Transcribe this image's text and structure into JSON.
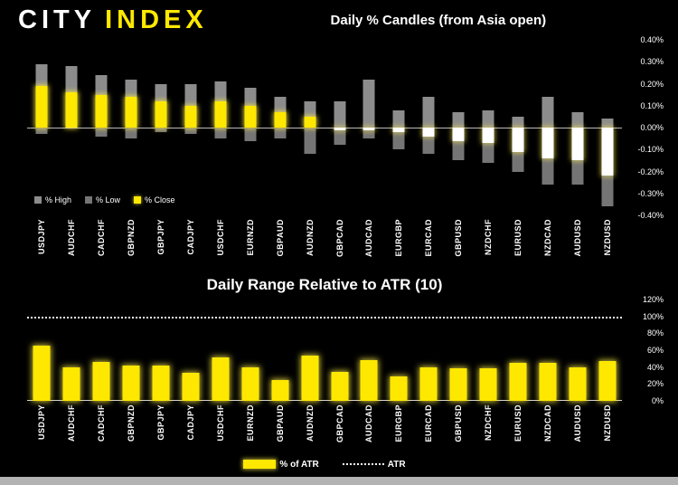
{
  "logo": {
    "city": "CITY",
    "index": "INDEX"
  },
  "candles_chart": {
    "title": "Daily % Candles (from Asia open)",
    "y_ticks": [
      "0.40%",
      "0.30%",
      "0.20%",
      "0.10%",
      "0.00%",
      "-0.10%",
      "-0.20%",
      "-0.30%",
      "-0.40%"
    ],
    "legend": [
      {
        "label": "% High",
        "color": "#8c8c8c"
      },
      {
        "label": "% Low",
        "color": "#757575"
      },
      {
        "label": "% Close",
        "color": "#ffe800"
      }
    ]
  },
  "atr_chart": {
    "title": "Daily Range Relative to ATR (10)",
    "y_ticks": [
      "120%",
      "100%",
      "80%",
      "60%",
      "40%",
      "20%",
      "0%"
    ],
    "legend": {
      "pct_of_atr": "% of ATR",
      "atr": "ATR"
    }
  },
  "colors": {
    "background": "#000000",
    "yellow": "#ffe800",
    "candle_up": "#ffe800",
    "candle_down": "#ffffff",
    "range_high": "#8c8c8c",
    "range_low": "#757575",
    "text": "#ffffff"
  },
  "chart_data": [
    {
      "type": "bar",
      "title": "Daily % Candles (from Asia open)",
      "categories": [
        "USDJPY",
        "AUDCHF",
        "CADCHF",
        "GBPNZD",
        "GBPJPY",
        "CADJPY",
        "USDCHF",
        "EURNZD",
        "GBPAUD",
        "AUDNZD",
        "GBPCAD",
        "AUDCAD",
        "EURGBP",
        "EURCAD",
        "GBPUSD",
        "NZDCHF",
        "EURUSD",
        "NZDCAD",
        "AUDUSD",
        "NZDUSD"
      ],
      "series": [
        {
          "name": "% High",
          "values": [
            0.29,
            0.28,
            0.24,
            0.22,
            0.2,
            0.2,
            0.21,
            0.18,
            0.14,
            0.12,
            0.12,
            0.22,
            0.08,
            0.14,
            0.07,
            0.08,
            0.05,
            0.14,
            0.07,
            0.04
          ]
        },
        {
          "name": "% Low",
          "values": [
            -0.03,
            0.0,
            -0.04,
            -0.05,
            -0.02,
            -0.03,
            -0.05,
            -0.06,
            -0.05,
            -0.12,
            -0.08,
            -0.05,
            -0.1,
            -0.12,
            -0.15,
            -0.16,
            -0.2,
            -0.26,
            -0.26,
            -0.36
          ]
        },
        {
          "name": "% Close",
          "values": [
            0.19,
            0.16,
            0.15,
            0.14,
            0.12,
            0.1,
            0.12,
            0.1,
            0.07,
            0.05,
            -0.01,
            -0.01,
            -0.02,
            -0.04,
            -0.06,
            -0.07,
            -0.11,
            -0.14,
            -0.15,
            -0.22
          ]
        }
      ],
      "xlabel": "",
      "ylabel": "",
      "ylim": [
        -0.4,
        0.4
      ],
      "grid": false,
      "legend_position": "bottom-left"
    },
    {
      "type": "bar",
      "title": "Daily Range Relative to ATR (10)",
      "categories": [
        "USDJPY",
        "AUDCHF",
        "CADCHF",
        "GBPNZD",
        "GBPJPY",
        "CADJPY",
        "USDCHF",
        "EURNZD",
        "GBPAUD",
        "AUDNZD",
        "GBPCAD",
        "AUDCAD",
        "EURGBP",
        "EURCAD",
        "GBPUSD",
        "NZDCHF",
        "EURUSD",
        "NZDCAD",
        "AUDUSD",
        "NZDUSD"
      ],
      "series": [
        {
          "name": "% of ATR",
          "values": [
            65,
            40,
            46,
            42,
            42,
            33,
            51,
            40,
            25,
            54,
            34,
            48,
            29,
            40,
            39,
            39,
            45,
            45,
            40,
            47
          ]
        }
      ],
      "annotations": [
        {
          "name": "ATR",
          "value": 100,
          "style": "dotted-line"
        }
      ],
      "xlabel": "",
      "ylabel": "",
      "ylim": [
        0,
        120
      ],
      "grid": false,
      "legend_position": "bottom-center"
    }
  ]
}
